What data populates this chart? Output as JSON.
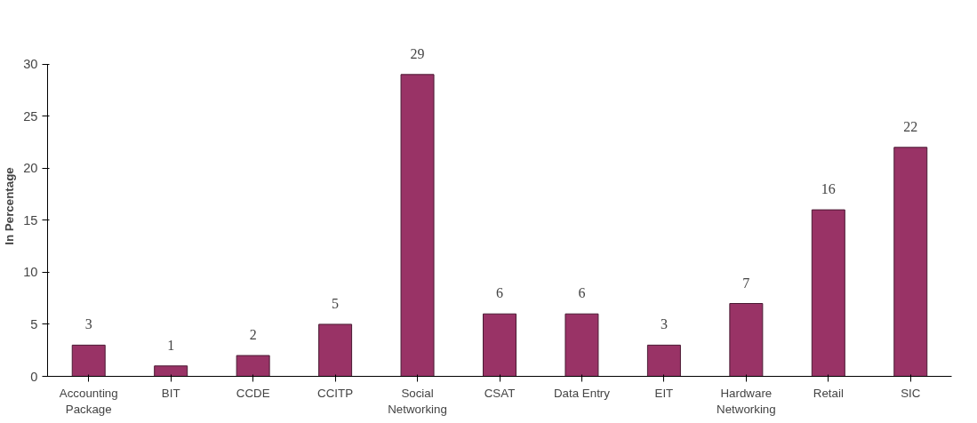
{
  "chart_data": {
    "type": "bar",
    "ylabel": "In Percentage",
    "categories": [
      "Accounting Package",
      "BIT",
      "CCDE",
      "CCITP",
      "Social Networking",
      "CSAT",
      "Data Entry",
      "EIT",
      "Hardware Networking",
      "Retail",
      "SIC"
    ],
    "values": [
      3,
      1,
      2,
      5,
      29,
      6,
      6,
      3,
      7,
      16,
      22
    ],
    "color": "#993366",
    "ylim": [
      0,
      30
    ],
    "yticks": [
      0,
      5,
      10,
      15,
      20,
      25,
      30
    ],
    "grid": false,
    "data_labels": true
  }
}
